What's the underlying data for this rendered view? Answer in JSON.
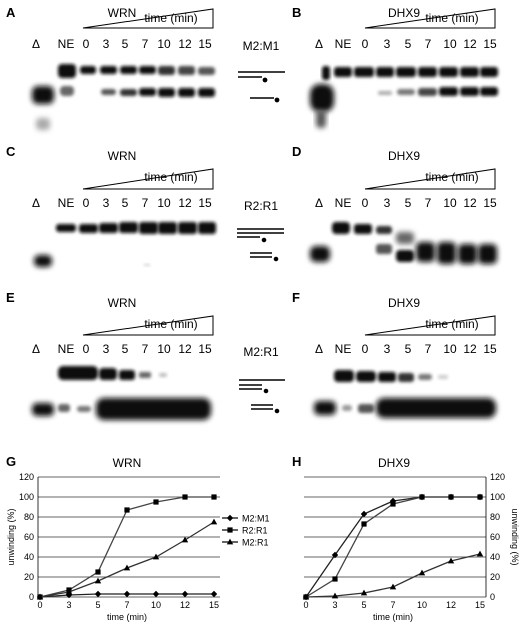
{
  "lane_labels": [
    "Δ",
    "NE",
    "0",
    "3",
    "5",
    "7",
    "10",
    "12",
    "15"
  ],
  "time_label": "time (min)",
  "gel_panels": [
    {
      "letter": "A",
      "enzyme": "WRN"
    },
    {
      "letter": "B",
      "enzyme": "DHX9"
    },
    {
      "letter": "C",
      "enzyme": "WRN"
    },
    {
      "letter": "D",
      "enzyme": "DHX9"
    },
    {
      "letter": "E",
      "enzyme": "WRN"
    },
    {
      "letter": "F",
      "enzyme": "DHX9"
    }
  ],
  "substrates": [
    "M2:M1",
    "R2:R1",
    "M2:R1"
  ],
  "chart_data": [
    {
      "panel": "G",
      "type": "line",
      "title": "WRN",
      "xlabel": "time (min)",
      "ylabel": "unwinding (%)",
      "x": [
        0,
        3,
        5,
        7,
        10,
        12,
        15
      ],
      "xticks": [
        "0",
        "3",
        "5",
        "7",
        "10",
        "12",
        "15"
      ],
      "ylim": [
        0,
        120
      ],
      "yticks": [
        "0",
        "20",
        "40",
        "60",
        "80",
        "100",
        "120"
      ],
      "grid": true,
      "series": [
        {
          "name": "M2:M1",
          "marker": "diamond",
          "values": [
            0,
            2,
            3,
            3,
            3,
            3,
            3
          ]
        },
        {
          "name": "R2:R1",
          "marker": "square",
          "values": [
            0,
            7,
            25,
            87,
            95,
            100,
            100
          ]
        },
        {
          "name": "M2:R1",
          "marker": "triangle",
          "values": [
            0,
            5,
            16,
            29,
            40,
            57,
            75
          ]
        }
      ]
    },
    {
      "panel": "H",
      "type": "line",
      "title": "DHX9",
      "xlabel": "time (min)",
      "ylabel": "unwinding (%)",
      "x": [
        0,
        3,
        5,
        7,
        10,
        12,
        15
      ],
      "xticks": [
        "0",
        "3",
        "5",
        "7",
        "10",
        "12",
        "15"
      ],
      "ylim": [
        0,
        120
      ],
      "yticks": [
        "0",
        "20",
        "40",
        "60",
        "80",
        "100",
        "120"
      ],
      "grid": true,
      "series": [
        {
          "name": "M2:M1",
          "marker": "diamond",
          "values": [
            0,
            42,
            83,
            96,
            100,
            100,
            100
          ]
        },
        {
          "name": "R2:R1",
          "marker": "square",
          "values": [
            0,
            18,
            73,
            93,
            100,
            100,
            100
          ]
        },
        {
          "name": "M2:R1",
          "marker": "triangle",
          "values": [
            0,
            1,
            4,
            10,
            24,
            36,
            43
          ]
        }
      ]
    }
  ],
  "legend": {
    "placement": "between-charts",
    "items": [
      "M2:M1",
      "R2:R1",
      "M2:R1"
    ]
  }
}
